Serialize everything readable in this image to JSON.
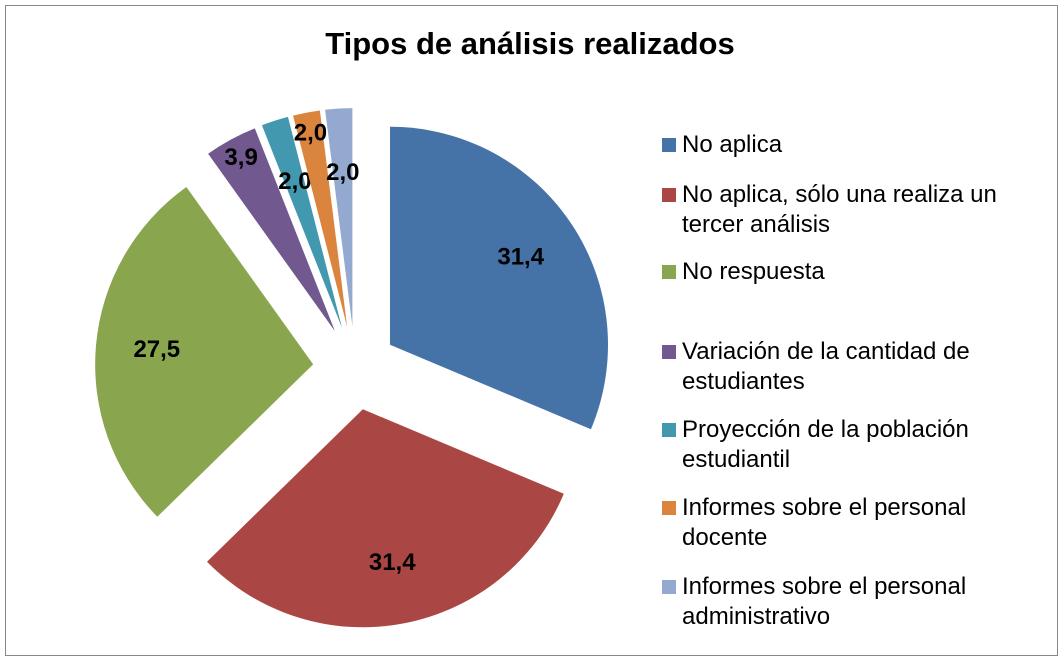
{
  "chart_data": {
    "type": "pie",
    "title": "Tipos de análisis realizados",
    "categories": [
      "No aplica",
      "No aplica, sólo una realiza un tercer análisis",
      "No respuesta",
      "Variación de la cantidad de estudiantes",
      "Proyección de la población estudiantil",
      "Informes sobre el personal docente",
      "Informes sobre el personal administrativo"
    ],
    "values": [
      31.4,
      31.4,
      27.5,
      3.9,
      2.0,
      2.0,
      2.0
    ],
    "value_labels": [
      "31,4",
      "31,4",
      "27,5",
      "3,9",
      "2,0",
      "2,0",
      "2,0"
    ],
    "colors": [
      "#4572a7",
      "#aa4643",
      "#89a54e",
      "#71588f",
      "#4198af",
      "#db843d",
      "#93a9cf"
    ],
    "legend": "right"
  }
}
